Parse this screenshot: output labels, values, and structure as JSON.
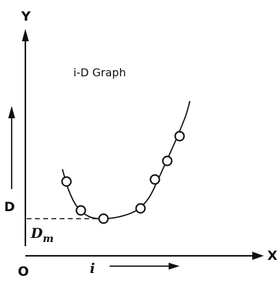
{
  "chart_data": {
    "type": "scatter",
    "title": "i-D Graph",
    "xlabel": "i",
    "ylabel": "D",
    "origin_label": "O",
    "x_axis_letter": "X",
    "y_axis_letter": "Y",
    "min_label": "D",
    "min_label_subscript": "m",
    "grid": false,
    "xlim": [
      0,
      100
    ],
    "ylim": [
      0,
      100
    ],
    "points": [
      {
        "x": 20,
        "y": 36
      },
      {
        "x": 27,
        "y": 22
      },
      {
        "x": 38,
        "y": 18
      },
      {
        "x": 56,
        "y": 23
      },
      {
        "x": 63,
        "y": 37
      },
      {
        "x": 69,
        "y": 46
      },
      {
        "x": 75,
        "y": 58
      }
    ],
    "curve": [
      {
        "x": 18,
        "y": 42
      },
      {
        "x": 21,
        "y": 32
      },
      {
        "x": 25,
        "y": 24
      },
      {
        "x": 31,
        "y": 19
      },
      {
        "x": 38,
        "y": 18
      },
      {
        "x": 46,
        "y": 19
      },
      {
        "x": 54,
        "y": 22
      },
      {
        "x": 60,
        "y": 28
      },
      {
        "x": 65,
        "y": 38
      },
      {
        "x": 70,
        "y": 49
      },
      {
        "x": 74,
        "y": 58
      },
      {
        "x": 78,
        "y": 68
      },
      {
        "x": 80,
        "y": 75
      }
    ],
    "minimum": {
      "x": 38,
      "y": 18
    },
    "colors": {
      "ink": "#111111",
      "background": "#ffffff"
    }
  }
}
